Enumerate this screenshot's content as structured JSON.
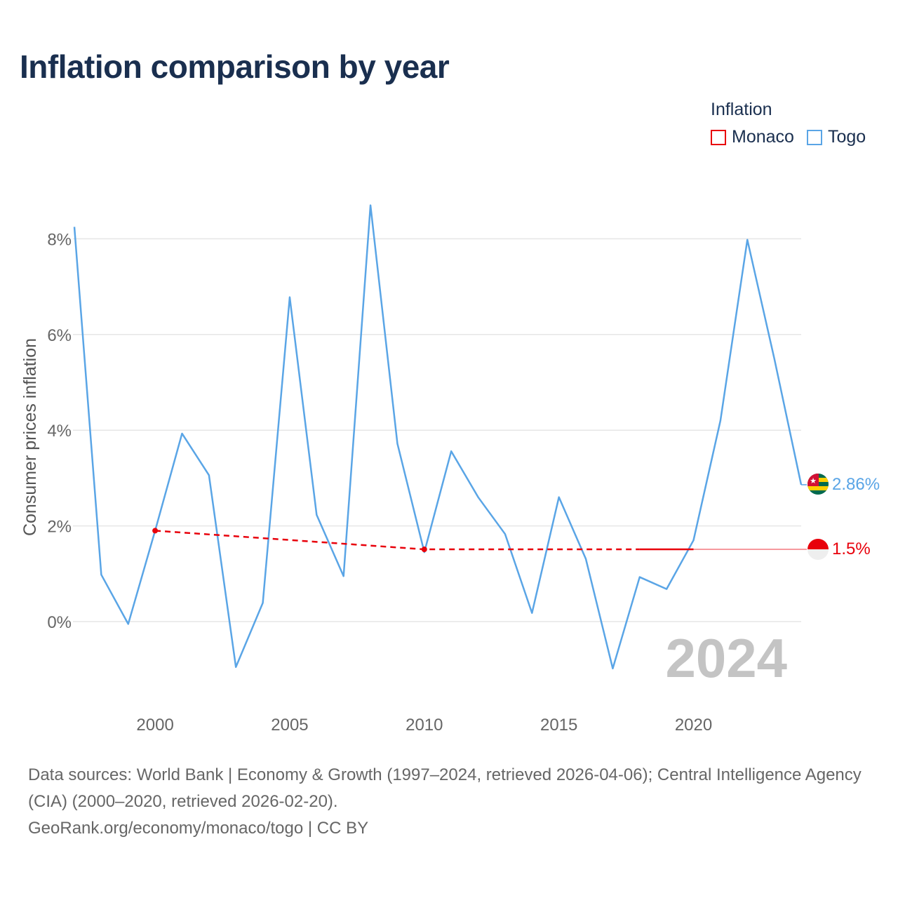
{
  "header": {
    "title": "Inflation comparison by year"
  },
  "legend": {
    "title": "Inflation",
    "items": [
      {
        "label": "Monaco",
        "color": "#e8000b"
      },
      {
        "label": "Togo",
        "color": "#5aa5e6"
      }
    ]
  },
  "chart_data": {
    "type": "line",
    "title": "Inflation comparison by year",
    "ylabel": "Consumer prices inflation",
    "xlabel": "",
    "xlim": [
      1997,
      2024
    ],
    "ylim": [
      -1.8,
      8.9
    ],
    "yticks": [
      0,
      2,
      4,
      6,
      8
    ],
    "ytick_labels": [
      "0%",
      "2%",
      "4%",
      "6%",
      "8%"
    ],
    "xticks": [
      2000,
      2005,
      2010,
      2015,
      2020
    ],
    "xtick_labels": [
      "2000",
      "2005",
      "2010",
      "2015",
      "2020"
    ],
    "watermark_year": "2024",
    "series": [
      {
        "name": "Togo",
        "color": "#5aa5e6",
        "end_label": "2.86%",
        "x": [
          1997,
          1998,
          1999,
          2000,
          2001,
          2002,
          2003,
          2004,
          2005,
          2006,
          2007,
          2008,
          2009,
          2010,
          2011,
          2012,
          2013,
          2014,
          2015,
          2016,
          2017,
          2018,
          2019,
          2020,
          2021,
          2022,
          2023,
          2024
        ],
        "values": [
          8.25,
          0.98,
          -0.05,
          1.9,
          3.93,
          3.06,
          -0.95,
          0.39,
          6.78,
          2.23,
          0.95,
          8.7,
          3.72,
          1.45,
          3.56,
          2.6,
          1.83,
          0.18,
          2.6,
          1.31,
          -0.98,
          0.93,
          0.68,
          1.7,
          4.2,
          7.98,
          5.5,
          2.86
        ]
      },
      {
        "name": "Monaco",
        "color": "#e8000b",
        "end_label": "1.5%",
        "x": [
          2000,
          2010,
          2018,
          2020
        ],
        "values": [
          1.9,
          1.51,
          1.51,
          1.51
        ],
        "note_extension_to": 2024
      }
    ]
  },
  "footer": {
    "sources": "Data sources: World Bank | Economy & Growth (1997–2024, retrieved 2026-04-06); Central Intelligence Agency (CIA) (2000–2020, retrieved 2026-02-20).",
    "credit": "GeoRank.org/economy/monaco/togo | CC BY"
  }
}
